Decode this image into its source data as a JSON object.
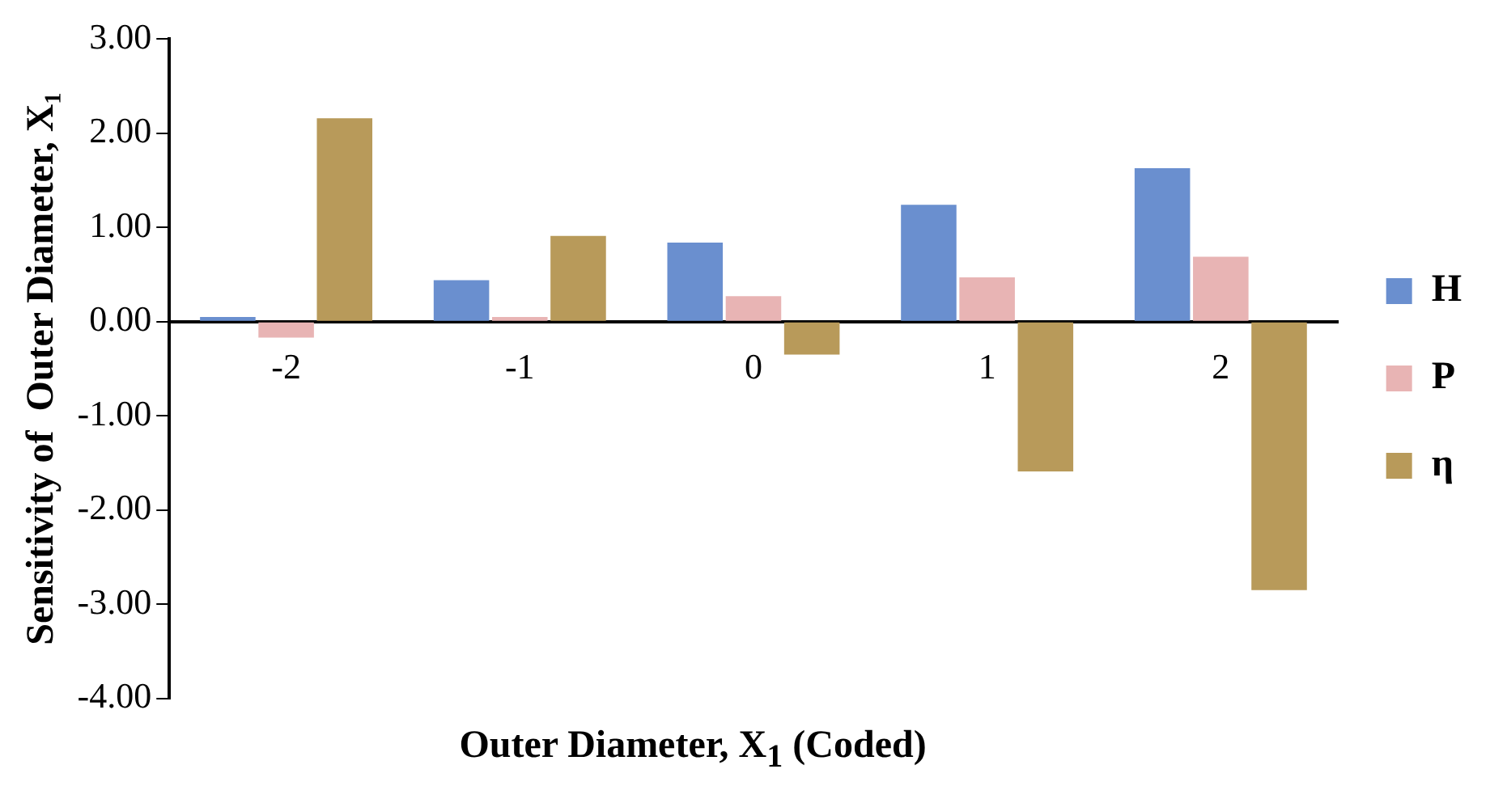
{
  "chart_data": {
    "type": "bar",
    "xlabel": "Outer Diameter, X$_{1}$ (Coded)",
    "ylabel": "Sensitivity of  Outer Diameter, X₁",
    "categories": [
      "-2",
      "-1",
      "0",
      "1",
      "2"
    ],
    "series": [
      {
        "name": "H",
        "color": "#6a8fcf",
        "values": [
          0.05,
          0.44,
          0.84,
          1.24,
          1.63
        ]
      },
      {
        "name": "P",
        "color": "#e8b4b4",
        "values": [
          -0.17,
          0.05,
          0.27,
          0.47,
          0.69
        ]
      },
      {
        "name": "η",
        "color": "#b89a5a",
        "values": [
          2.16,
          0.91,
          -0.35,
          -1.59,
          -2.85
        ]
      }
    ],
    "ylim": [
      -4,
      3
    ],
    "yticks": [
      {
        "value": -4,
        "label": "-4.00"
      },
      {
        "value": -3,
        "label": "-3.00"
      },
      {
        "value": -2,
        "label": "-2.00"
      },
      {
        "value": -1,
        "label": "-1.00"
      },
      {
        "value": 0,
        "label": "0.00"
      },
      {
        "value": 1,
        "label": "1.00"
      },
      {
        "value": 2,
        "label": "2.00"
      },
      {
        "value": 3,
        "label": "3.00"
      }
    ],
    "grid": false,
    "legend": "right"
  }
}
